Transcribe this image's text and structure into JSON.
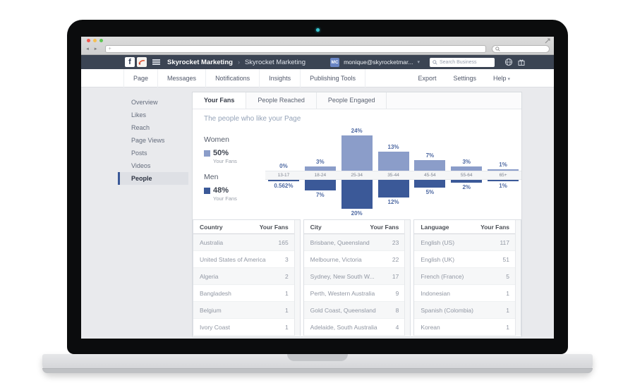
{
  "browser": {
    "url_value": "+",
    "back_glyph": "◄",
    "forward_glyph": "►"
  },
  "fb_header": {
    "logo_letter": "f",
    "workspace_name": "Skyrocket Marketing",
    "breadcrumb_chevron": "›",
    "page_name": "Skyrocket Marketing",
    "user_initials": "MC",
    "user_email": "monique@skyrocketmar...",
    "dropdown_caret": "▾",
    "search_placeholder": "Search Business"
  },
  "nav": {
    "left": [
      "Page",
      "Messages",
      "Notifications",
      "Insights",
      "Publishing Tools"
    ],
    "right": [
      {
        "label": "Export",
        "caret": false
      },
      {
        "label": "Settings",
        "caret": false
      },
      {
        "label": "Help",
        "caret": true
      }
    ]
  },
  "sidebar": {
    "items": [
      "Overview",
      "Likes",
      "Reach",
      "Page Views",
      "Posts",
      "Videos",
      "People"
    ],
    "active_index": 6
  },
  "tabs": {
    "items": [
      "Your Fans",
      "People Reached",
      "People Engaged"
    ],
    "active_index": 0
  },
  "section_title": "The people who like your Page",
  "legend": {
    "women": {
      "label": "Women",
      "pct": "50%",
      "sub": "Your Fans"
    },
    "men": {
      "label": "Men",
      "pct": "48%",
      "sub": "Your Fans"
    }
  },
  "chart_data": {
    "type": "bar",
    "title": "The people who like your Page",
    "categories": [
      "13-17",
      "18-24",
      "25-34",
      "35-44",
      "45-54",
      "55-64",
      "65+"
    ],
    "series": [
      {
        "name": "Women",
        "values": [
          0,
          3,
          24,
          13,
          7,
          3,
          1
        ],
        "labels": [
          "0%",
          "3%",
          "24%",
          "13%",
          "7%",
          "3%",
          "1%"
        ],
        "color": "#8b9dc9"
      },
      {
        "name": "Men",
        "values": [
          0.562,
          7,
          20,
          12,
          5,
          2,
          1
        ],
        "labels": [
          "0.562%",
          "7%",
          "20%",
          "12%",
          "5%",
          "2%",
          "1%"
        ],
        "color": "#3b5998"
      }
    ],
    "orientation": "mirrored (Women above axis, Men below)",
    "legend_position": "left",
    "grid": false
  },
  "tables": [
    {
      "id": "country",
      "headers": [
        "Country",
        "Your Fans"
      ],
      "rows": [
        [
          "Australia",
          "165"
        ],
        [
          "United States of America",
          "3"
        ],
        [
          "Algeria",
          "2"
        ],
        [
          "Bangladesh",
          "1"
        ],
        [
          "Belgium",
          "1"
        ],
        [
          "Ivory Coast",
          "1"
        ]
      ]
    },
    {
      "id": "city",
      "headers": [
        "City",
        "Your Fans"
      ],
      "rows": [
        [
          "Brisbane, Queensland",
          "23"
        ],
        [
          "Melbourne, Victoria",
          "22"
        ],
        [
          "Sydney, New South W...",
          "17"
        ],
        [
          "Perth, Western Australia",
          "9"
        ],
        [
          "Gold Coast, Queensland",
          "8"
        ],
        [
          "Adelaide, South Australia",
          "4"
        ]
      ]
    },
    {
      "id": "language",
      "headers": [
        "Language",
        "Your Fans"
      ],
      "rows": [
        [
          "English (US)",
          "117"
        ],
        [
          "English (UK)",
          "51"
        ],
        [
          "French (France)",
          "5"
        ],
        [
          "Indonesian",
          "1"
        ],
        [
          "Spanish (Colombia)",
          "1"
        ],
        [
          "Korean",
          "1"
        ]
      ]
    }
  ],
  "colors": {
    "accent_blue": "#3b5998",
    "women_bar": "#8b9dc9",
    "men_bar": "#3b5998",
    "percent_label": "#4e69a2",
    "header_bg": "#3b4453",
    "page_bg": "#e9eaed"
  }
}
